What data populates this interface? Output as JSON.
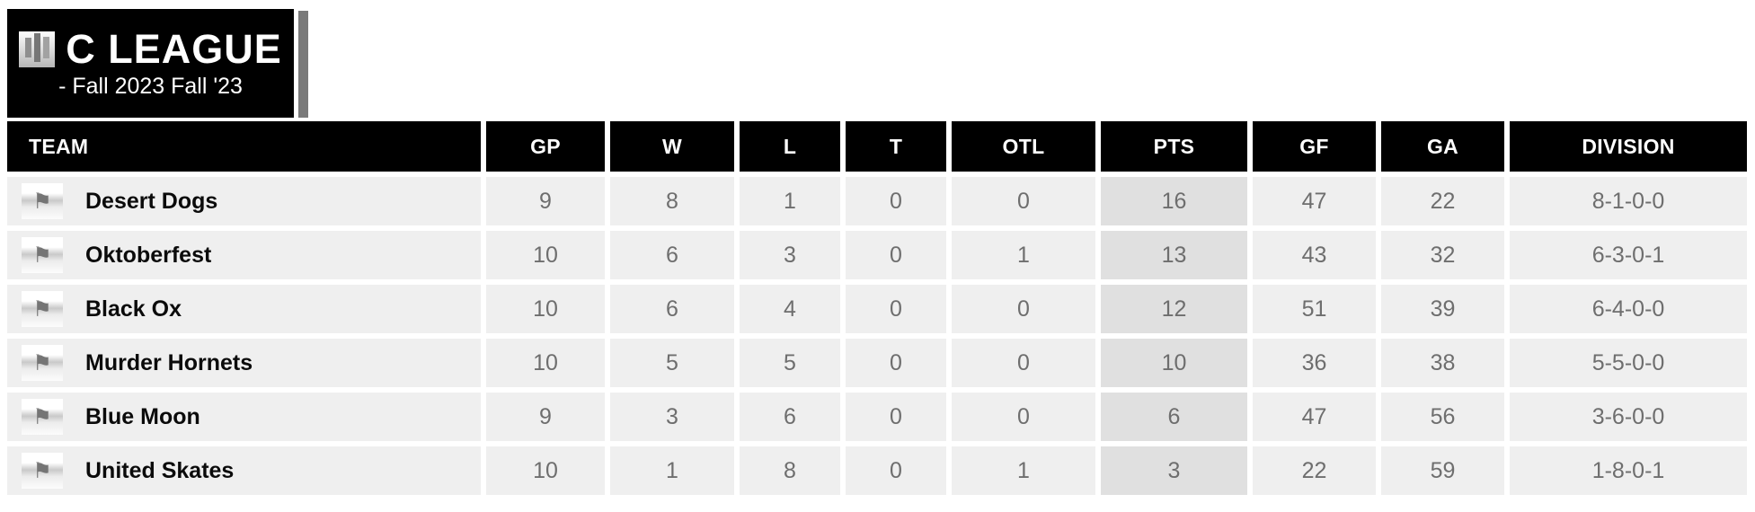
{
  "header": {
    "league_name": "C LEAGUE",
    "season": "- Fall 2023 Fall '23"
  },
  "icons": {
    "league_logo": "stats-bars-icon",
    "team_flag": "flag-icon",
    "flag_glyph": "⚑"
  },
  "colors": {
    "header_bg": "#000000",
    "header_text": "#ffffff",
    "row_bg": "#efefef",
    "pts_col_bg": "#e0e0e0",
    "data_text": "#6e6e6e",
    "team_text": "#0b0b0b",
    "accent_bar": "#7a7a7a"
  },
  "table": {
    "columns": [
      "TEAM",
      "GP",
      "W",
      "L",
      "T",
      "OTL",
      "PTS",
      "GF",
      "GA",
      "DIVISION"
    ],
    "rows": [
      {
        "team": "Desert Dogs",
        "gp": "9",
        "w": "8",
        "l": "1",
        "t": "0",
        "otl": "0",
        "pts": "16",
        "gf": "47",
        "ga": "22",
        "division": "8-1-0-0"
      },
      {
        "team": "Oktoberfest",
        "gp": "10",
        "w": "6",
        "l": "3",
        "t": "0",
        "otl": "1",
        "pts": "13",
        "gf": "43",
        "ga": "32",
        "division": "6-3-0-1"
      },
      {
        "team": "Black Ox",
        "gp": "10",
        "w": "6",
        "l": "4",
        "t": "0",
        "otl": "0",
        "pts": "12",
        "gf": "51",
        "ga": "39",
        "division": "6-4-0-0"
      },
      {
        "team": "Murder Hornets",
        "gp": "10",
        "w": "5",
        "l": "5",
        "t": "0",
        "otl": "0",
        "pts": "10",
        "gf": "36",
        "ga": "38",
        "division": "5-5-0-0"
      },
      {
        "team": "Blue Moon",
        "gp": "9",
        "w": "3",
        "l": "6",
        "t": "0",
        "otl": "0",
        "pts": "6",
        "gf": "47",
        "ga": "56",
        "division": "3-6-0-0"
      },
      {
        "team": "United Skates",
        "gp": "10",
        "w": "1",
        "l": "8",
        "t": "0",
        "otl": "1",
        "pts": "3",
        "gf": "22",
        "ga": "59",
        "division": "1-8-0-1"
      }
    ]
  }
}
